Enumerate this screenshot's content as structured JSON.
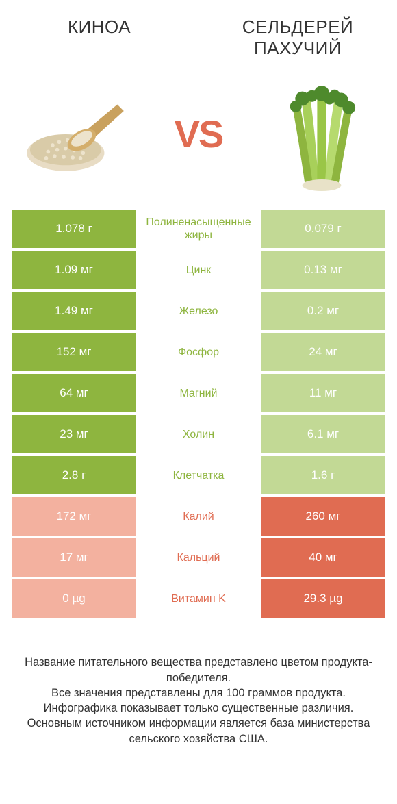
{
  "product_left": "Киноа",
  "product_right_line1": "Сельдерей",
  "product_right_line2": "пахучий",
  "vs_text": "VS",
  "colors": {
    "green_strong": "#8EB53F",
    "green_light": "#C2D995",
    "orange_strong": "#E06C52",
    "orange_light": "#F3B19F",
    "text": "#333333",
    "bg": "#ffffff"
  },
  "table": {
    "rows": [
      {
        "left": "1.078 г",
        "label": "Полиненасыщенные жиры",
        "right": "0.079 г",
        "winner": "left"
      },
      {
        "left": "1.09 мг",
        "label": "Цинк",
        "right": "0.13 мг",
        "winner": "left"
      },
      {
        "left": "1.49 мг",
        "label": "Железо",
        "right": "0.2 мг",
        "winner": "left"
      },
      {
        "left": "152 мг",
        "label": "Фосфор",
        "right": "24 мг",
        "winner": "left"
      },
      {
        "left": "64 мг",
        "label": "Магний",
        "right": "11 мг",
        "winner": "left"
      },
      {
        "left": "23 мг",
        "label": "Холин",
        "right": "6.1 мг",
        "winner": "left"
      },
      {
        "left": "2.8 г",
        "label": "Клетчатка",
        "right": "1.6 г",
        "winner": "left"
      },
      {
        "left": "172 мг",
        "label": "Калий",
        "right": "260 мг",
        "winner": "right"
      },
      {
        "left": "17 мг",
        "label": "Кальций",
        "right": "40 мг",
        "winner": "right"
      },
      {
        "left": "0 µg",
        "label": "Витамин K",
        "right": "29.3 µg",
        "winner": "right"
      }
    ]
  },
  "footer": {
    "line1": "Название питательного вещества представлено цветом продукта-победителя.",
    "line2": "Все значения представлены для 100 граммов продукта.",
    "line3": "Инфографика показывает только существенные различия.",
    "line4": "Основным источником информации является база министерства сельского хозяйства США."
  }
}
